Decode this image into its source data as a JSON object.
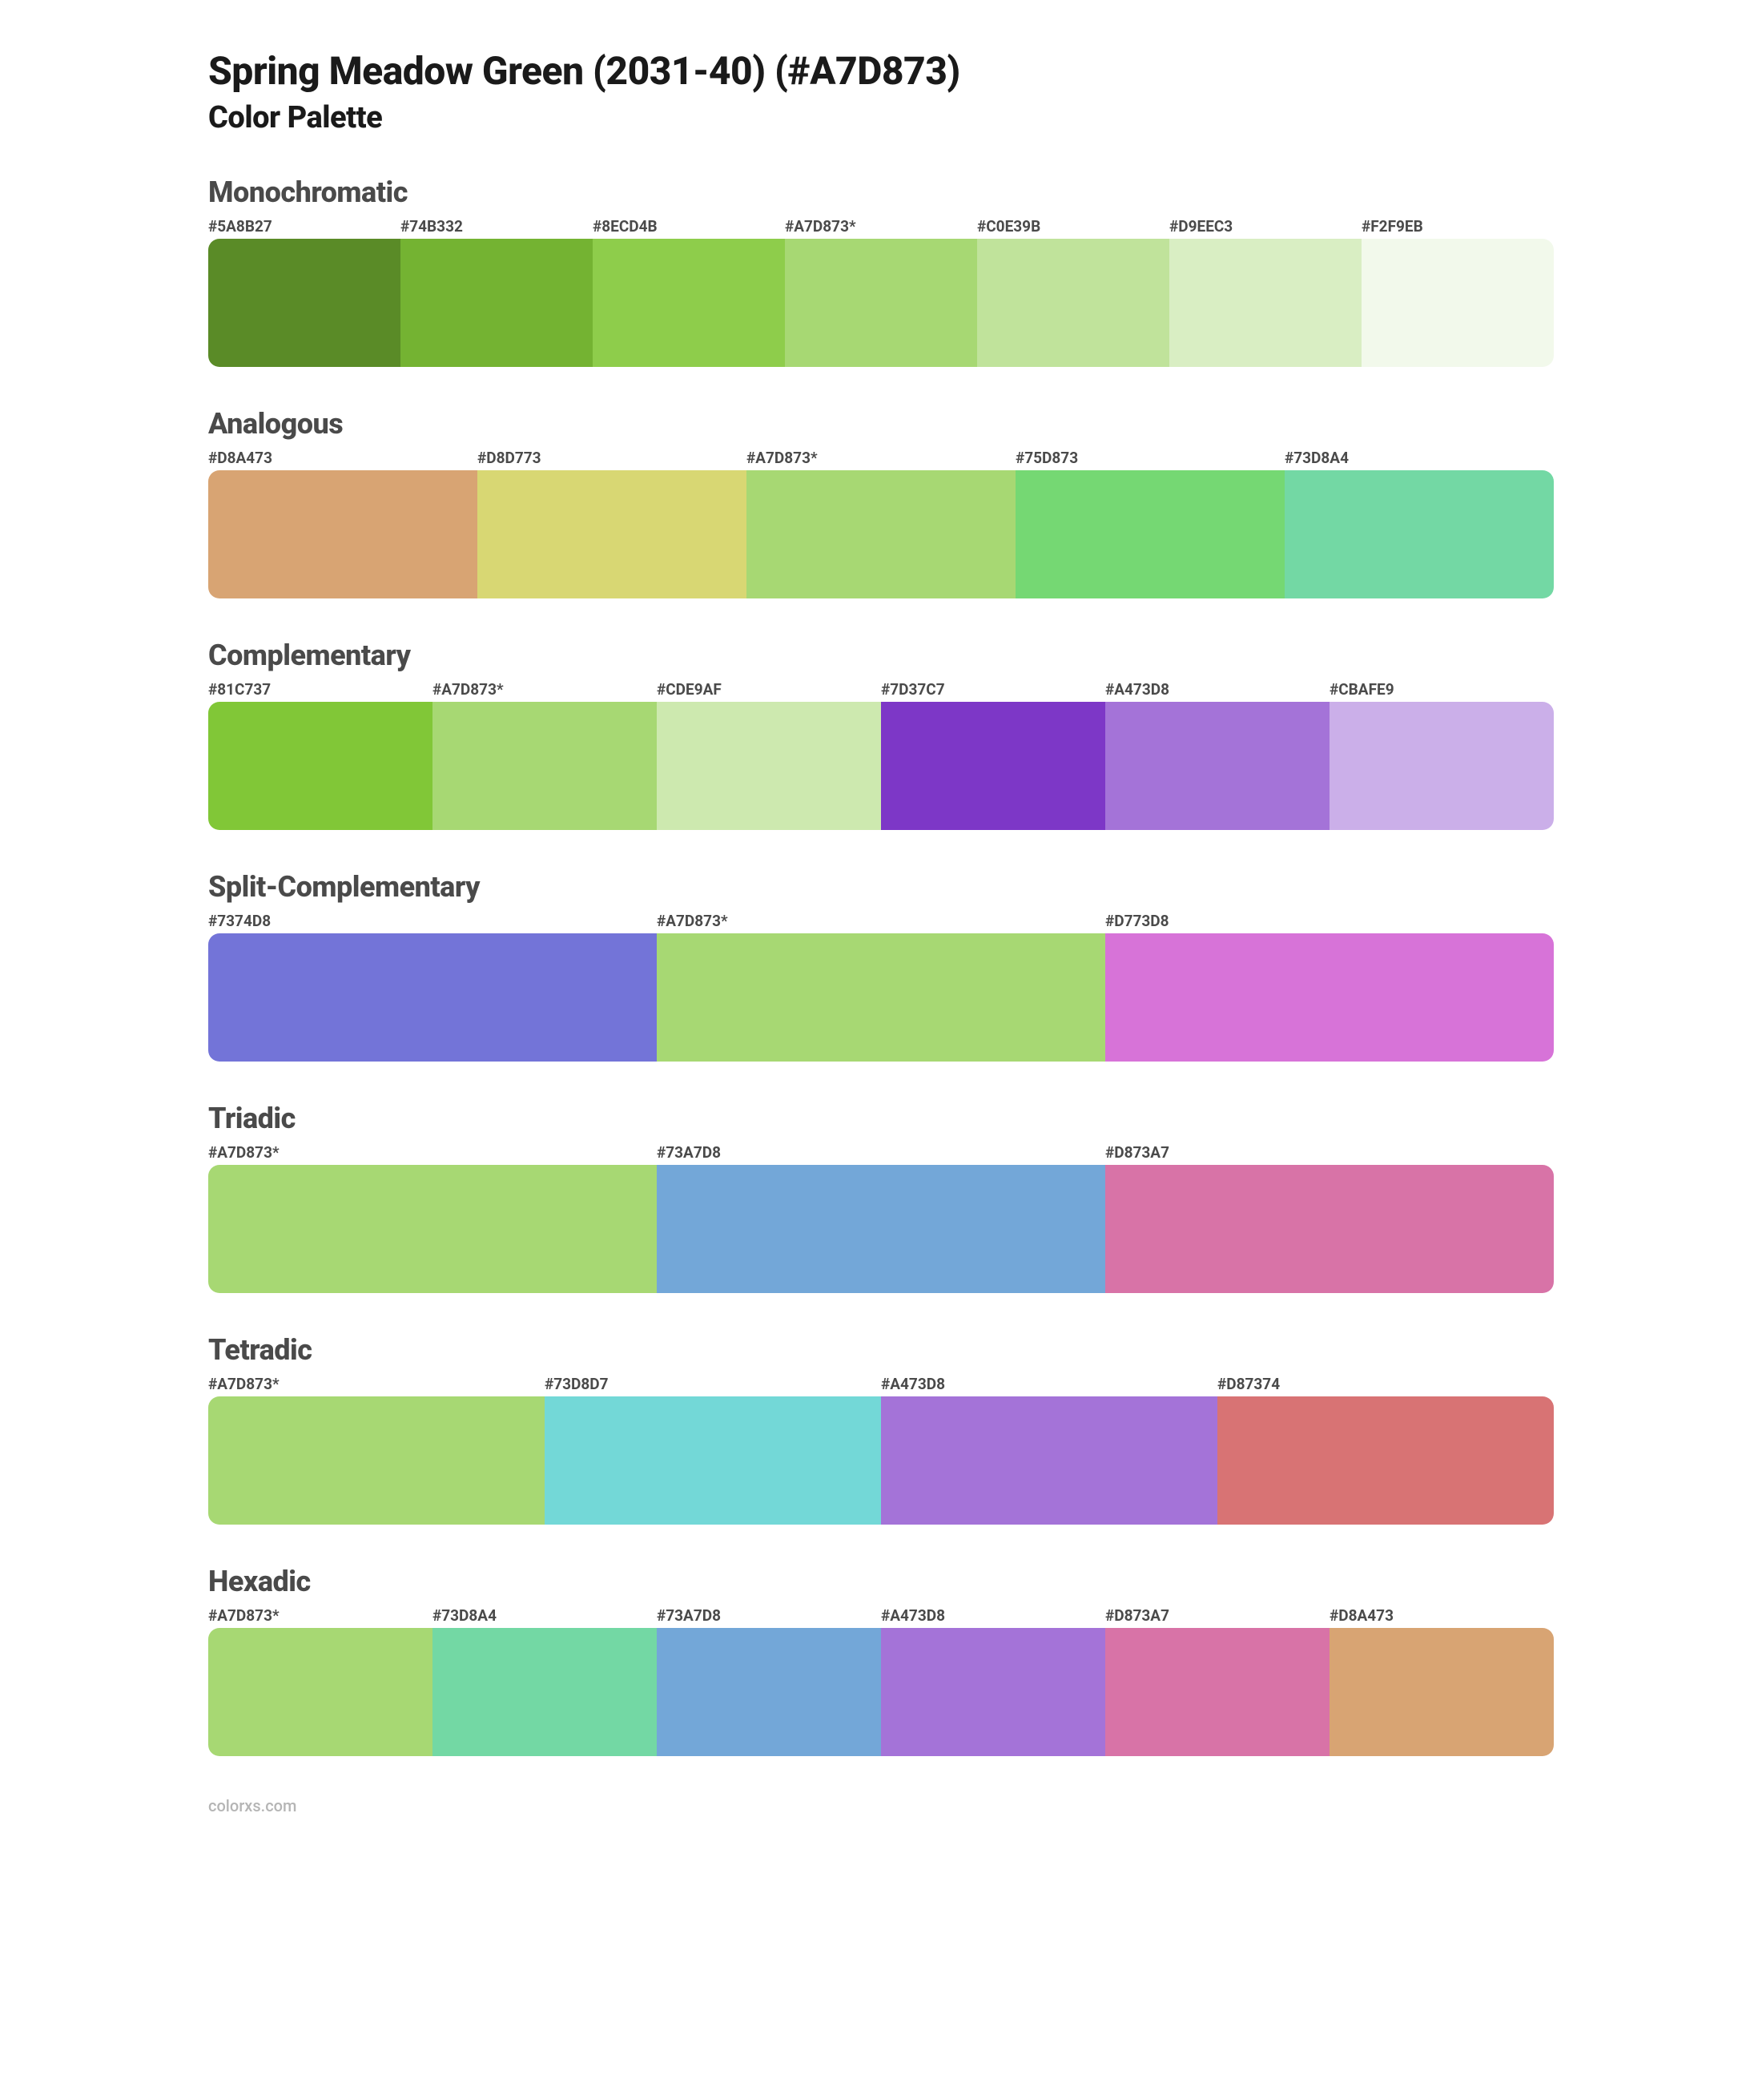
{
  "header": {
    "title": "Spring Meadow Green (2031-40) (#A7D873)",
    "subtitle": "Color Palette"
  },
  "styling": {
    "background_color": "#ffffff",
    "title_color": "#1a1a1a",
    "section_title_color": "#4a4a4a",
    "label_color": "#4a4a4a",
    "footer_color": "#b5b5b5",
    "title_fontsize": 48,
    "subtitle_fontsize": 38,
    "section_title_fontsize": 36,
    "label_fontsize": 19,
    "swatch_height": 160,
    "swatch_border_radius": 14
  },
  "sections": [
    {
      "title": "Monochromatic",
      "swatches": [
        {
          "label": "#5A8B27",
          "color": "#5A8B27"
        },
        {
          "label": "#74B332",
          "color": "#74B332"
        },
        {
          "label": "#8ECD4B",
          "color": "#8ECD4B"
        },
        {
          "label": "#A7D873*",
          "color": "#A7D873"
        },
        {
          "label": "#C0E39B",
          "color": "#C0E39B"
        },
        {
          "label": "#D9EEC3",
          "color": "#D9EEC3"
        },
        {
          "label": "#F2F9EB",
          "color": "#F2F9EB"
        }
      ]
    },
    {
      "title": "Analogous",
      "swatches": [
        {
          "label": "#D8A473",
          "color": "#D8A473"
        },
        {
          "label": "#D8D773",
          "color": "#D8D773"
        },
        {
          "label": "#A7D873*",
          "color": "#A7D873"
        },
        {
          "label": "#75D873",
          "color": "#75D873"
        },
        {
          "label": "#73D8A4",
          "color": "#73D8A4"
        }
      ]
    },
    {
      "title": "Complementary",
      "swatches": [
        {
          "label": "#81C737",
          "color": "#81C737"
        },
        {
          "label": "#A7D873*",
          "color": "#A7D873"
        },
        {
          "label": "#CDE9AF",
          "color": "#CDE9AF"
        },
        {
          "label": "#7D37C7",
          "color": "#7D37C7"
        },
        {
          "label": "#A473D8",
          "color": "#A473D8"
        },
        {
          "label": "#CBAFE9",
          "color": "#CBAFE9"
        }
      ]
    },
    {
      "title": "Split-Complementary",
      "swatches": [
        {
          "label": "#7374D8",
          "color": "#7374D8"
        },
        {
          "label": "#A7D873*",
          "color": "#A7D873"
        },
        {
          "label": "#D773D8",
          "color": "#D773D8"
        }
      ]
    },
    {
      "title": "Triadic",
      "swatches": [
        {
          "label": "#A7D873*",
          "color": "#A7D873"
        },
        {
          "label": "#73A7D8",
          "color": "#73A7D8"
        },
        {
          "label": "#D873A7",
          "color": "#D873A7"
        }
      ]
    },
    {
      "title": "Tetradic",
      "swatches": [
        {
          "label": "#A7D873*",
          "color": "#A7D873"
        },
        {
          "label": "#73D8D7",
          "color": "#73D8D7"
        },
        {
          "label": "#A473D8",
          "color": "#A473D8"
        },
        {
          "label": "#D87374",
          "color": "#D87374"
        }
      ]
    },
    {
      "title": "Hexadic",
      "swatches": [
        {
          "label": "#A7D873*",
          "color": "#A7D873"
        },
        {
          "label": "#73D8A4",
          "color": "#73D8A4"
        },
        {
          "label": "#73A7D8",
          "color": "#73A7D8"
        },
        {
          "label": "#A473D8",
          "color": "#A473D8"
        },
        {
          "label": "#D873A7",
          "color": "#D873A7"
        },
        {
          "label": "#D8A473",
          "color": "#D8A473"
        }
      ]
    }
  ],
  "footer": {
    "text": "colorxs.com"
  }
}
